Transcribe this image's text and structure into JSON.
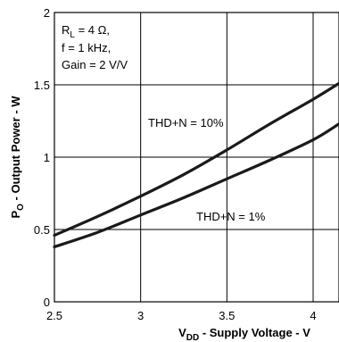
{
  "chart_data": {
    "type": "line",
    "xlabel": {
      "main": "V",
      "sub": "DD",
      "rest": " - Supply Voltage - V"
    },
    "ylabel": {
      "main": "P",
      "sub": "O",
      "rest": " - Output Power - W"
    },
    "xlim": [
      2.5,
      4.15
    ],
    "ylim": [
      0,
      2
    ],
    "xticks": [
      2.5,
      3,
      3.5,
      4
    ],
    "xtick_labels": [
      "2.5",
      "3",
      "3.5",
      "4"
    ],
    "yticks": [
      0,
      0.5,
      1,
      1.5,
      2
    ],
    "ytick_labels": [
      "0",
      "0.5",
      "1",
      "1.5",
      "2"
    ],
    "grid": true,
    "conditions": {
      "line1": {
        "pre": "R",
        "sub": "L",
        "post": " = 4 Ω,"
      },
      "line2": "f = 1 kHz,",
      "line3": "Gain = 2 V/V"
    },
    "series": [
      {
        "name": "THD+N = 10%",
        "x": [
          2.5,
          2.75,
          3.0,
          3.25,
          3.5,
          3.75,
          4.0,
          4.15
        ],
        "y": [
          0.46,
          0.59,
          0.73,
          0.88,
          1.05,
          1.23,
          1.4,
          1.51
        ]
      },
      {
        "name": "THD+N = 1%",
        "x": [
          2.5,
          2.75,
          3.0,
          3.25,
          3.5,
          3.75,
          4.0,
          4.15
        ],
        "y": [
          0.38,
          0.48,
          0.6,
          0.72,
          0.85,
          0.98,
          1.12,
          1.23
        ]
      }
    ]
  }
}
